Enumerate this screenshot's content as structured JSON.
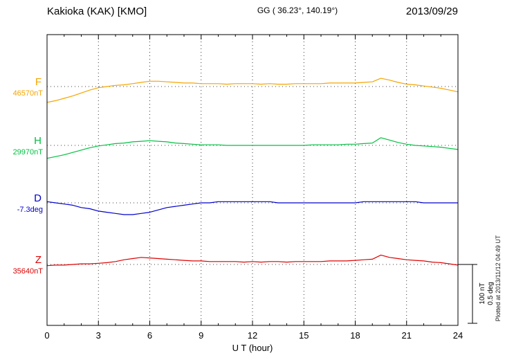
{
  "chart_data": {
    "type": "line",
    "title": "Kakioka (KAK)  [KMO]",
    "coords": "GG ( 36.23°, 140.19°)",
    "date": "2013/09/29",
    "xlabel": "U T (hour)",
    "x_range": [
      0,
      24
    ],
    "x_ticks": [
      0,
      3,
      6,
      9,
      12,
      15,
      18,
      21,
      24
    ],
    "grid": "dotted vertical lines every 3 hours, dotted horizontal baseline per component",
    "x_hours": [
      0,
      0.5,
      1,
      1.5,
      2,
      2.5,
      3,
      3.5,
      4,
      4.5,
      5,
      5.5,
      6,
      6.5,
      7,
      7.5,
      8,
      8.5,
      9,
      9.5,
      10,
      10.5,
      11,
      11.5,
      12,
      12.5,
      13,
      13.5,
      14,
      14.5,
      15,
      15.5,
      16,
      16.5,
      17,
      17.5,
      18,
      18.5,
      19,
      19.5,
      20,
      20.5,
      21,
      21.5,
      22,
      22.5,
      23,
      23.5,
      24
    ],
    "series": [
      {
        "name": "F",
        "unit": "nT",
        "baseline_value": 46570,
        "baseline_label": "46570nT",
        "color": "#f5a400",
        "offsets_from_baseline": [
          -27,
          -24,
          -20,
          -16,
          -11,
          -6,
          -2,
          0,
          2,
          3,
          5,
          7,
          9,
          9,
          8,
          7,
          6,
          6,
          5,
          5,
          5,
          4,
          5,
          5,
          5,
          4,
          5,
          4,
          4,
          5,
          5,
          5,
          5,
          6,
          6,
          6,
          6,
          7,
          8,
          14,
          11,
          7,
          4,
          3,
          1,
          -1,
          -3,
          -6,
          -9
        ]
      },
      {
        "name": "H",
        "unit": "nT",
        "baseline_value": 29970,
        "baseline_label": "29970nT",
        "color": "#00c040",
        "offsets_from_baseline": [
          -22,
          -19,
          -16,
          -12,
          -8,
          -4,
          -1,
          1,
          3,
          4,
          6,
          7,
          8,
          7,
          6,
          4,
          3,
          2,
          1,
          1,
          1,
          0,
          0,
          0,
          0,
          0,
          0,
          0,
          0,
          0,
          0,
          1,
          1,
          1,
          1,
          2,
          2,
          3,
          4,
          13,
          9,
          5,
          2,
          0,
          -1,
          -2,
          -3,
          -5,
          -7
        ]
      },
      {
        "name": "D",
        "unit": "deg",
        "baseline_value": -7.3,
        "baseline_label": "-7.3deg",
        "color": "#0000cc",
        "offsets_from_baseline": [
          0.01,
          0,
          -0.01,
          -0.02,
          -0.04,
          -0.05,
          -0.07,
          -0.08,
          -0.09,
          -0.1,
          -0.1,
          -0.09,
          -0.08,
          -0.06,
          -0.04,
          -0.03,
          -0.02,
          -0.01,
          0,
          0,
          0.01,
          0.01,
          0.01,
          0.01,
          0.01,
          0.01,
          0.01,
          0,
          0,
          0,
          0,
          0,
          0,
          0,
          0,
          0,
          0,
          0.01,
          0.01,
          0.01,
          0.01,
          0.01,
          0.01,
          0.01,
          0,
          0,
          0,
          0,
          0
        ]
      },
      {
        "name": "Z",
        "unit": "nT",
        "baseline_value": 35640,
        "baseline_label": "35640nT",
        "color": "#dd0000",
        "offsets_from_baseline": [
          -2,
          -1,
          -1,
          0,
          1,
          1,
          2,
          3,
          5,
          8,
          10,
          12,
          11,
          10,
          9,
          8,
          7,
          6,
          6,
          5,
          5,
          5,
          5,
          4,
          5,
          4,
          5,
          5,
          4,
          5,
          5,
          5,
          5,
          6,
          6,
          6,
          7,
          8,
          9,
          16,
          12,
          10,
          8,
          7,
          6,
          4,
          3,
          1,
          -1
        ]
      }
    ],
    "scale_bar": {
      "nt_label": "100 nT",
      "deg_label": "0.5 deg"
    },
    "plotted_at": "Plotted at 2013/11/12 04:49 UT"
  }
}
